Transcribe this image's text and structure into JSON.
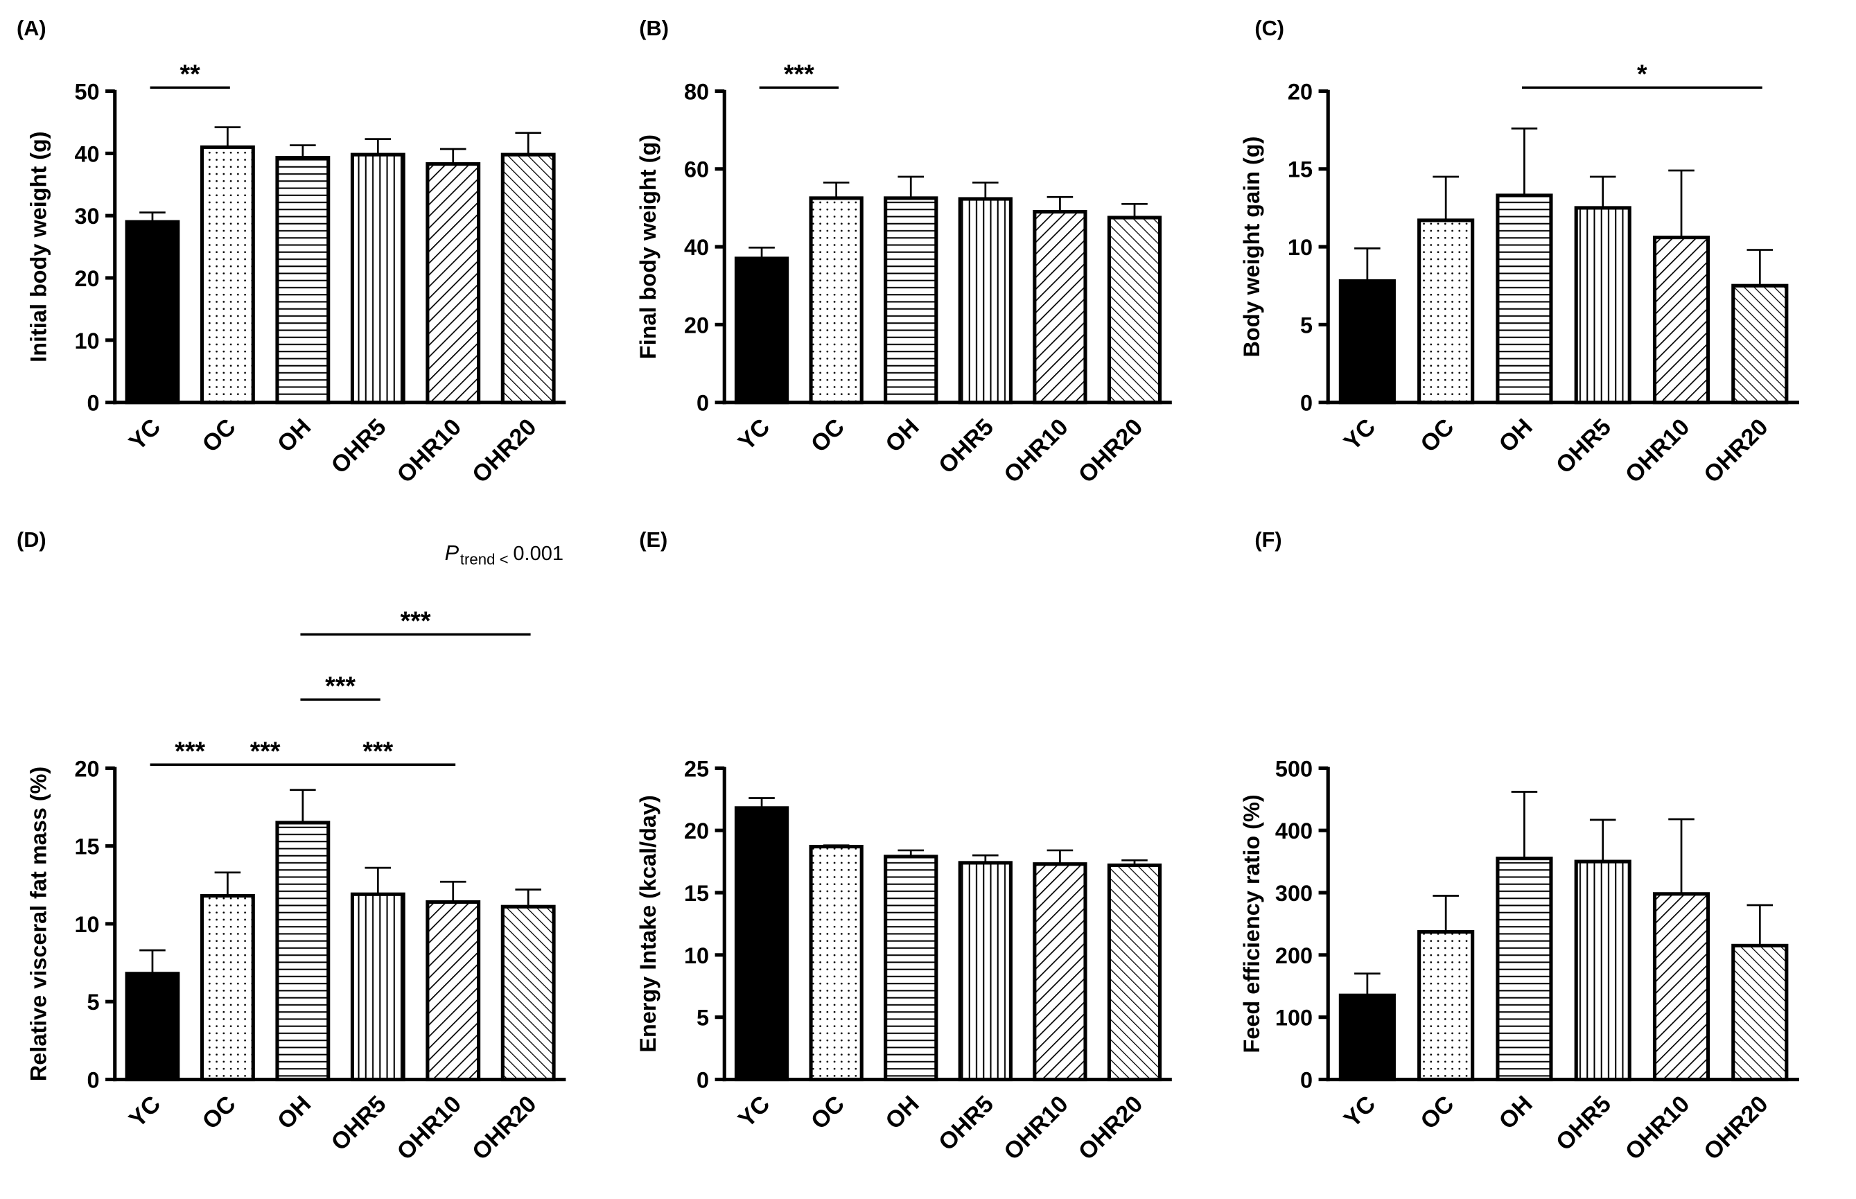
{
  "chart_data": [
    {
      "type": "bar",
      "panel": "(A)",
      "ylabel": "Initial body weight (g)",
      "categories": [
        "YC",
        "OC",
        "OH",
        "OHR5",
        "OHR10",
        "OHR20"
      ],
      "values": [
        29,
        41,
        39.3,
        39.8,
        38.3,
        39.8
      ],
      "errors": [
        1.5,
        3.2,
        2,
        2.5,
        2.4,
        3.5
      ],
      "ylim": [
        0,
        50
      ],
      "yticks": [
        0,
        10,
        20,
        30,
        40,
        50
      ],
      "significance": [
        {
          "label": "**",
          "from": "YC",
          "to": "OC"
        }
      ]
    },
    {
      "type": "bar",
      "panel": "(B)",
      "ylabel": "Final body weight (g)",
      "categories": [
        "YC",
        "OC",
        "OH",
        "OHR5",
        "OHR10",
        "OHR20"
      ],
      "values": [
        37,
        52.5,
        52.5,
        52.3,
        49,
        47.5
      ],
      "errors": [
        2.8,
        4,
        5.5,
        4.2,
        3.8,
        3.5
      ],
      "ylim": [
        0,
        80
      ],
      "yticks": [
        0,
        20,
        40,
        60,
        80
      ],
      "significance": [
        {
          "label": "***",
          "from": "YC",
          "to": "OC"
        }
      ]
    },
    {
      "type": "bar",
      "panel": "(C)",
      "ylabel": "Body weight gain (g)",
      "categories": [
        "YC",
        "OC",
        "OH",
        "OHR5",
        "OHR10",
        "OHR20"
      ],
      "values": [
        7.8,
        11.7,
        13.3,
        12.5,
        10.6,
        7.5
      ],
      "errors": [
        2.1,
        2.8,
        4.3,
        2,
        4.3,
        2.3
      ],
      "ylim": [
        0,
        20
      ],
      "yticks": [
        0,
        5,
        10,
        15,
        20
      ],
      "significance": [
        {
          "label": "*",
          "from": "OH",
          "to": "OHR20"
        }
      ]
    },
    {
      "type": "bar",
      "panel": "(D)",
      "ylabel": "Relative visceral fat mass (%)",
      "categories": [
        "YC",
        "OC",
        "OH",
        "OHR5",
        "OHR10",
        "OHR20"
      ],
      "values": [
        6.8,
        11.8,
        16.5,
        11.9,
        11.4,
        11.1
      ],
      "errors": [
        1.5,
        1.5,
        2.1,
        1.7,
        1.3,
        1.1
      ],
      "ylim": [
        0,
        20
      ],
      "yticks": [
        0,
        5,
        10,
        15,
        20
      ],
      "trend": {
        "symbol": "P",
        "subscript": "trend <",
        "value": "0.001"
      },
      "significance": [
        {
          "label": "***",
          "from": "YC",
          "to": "OC"
        },
        {
          "label": "***",
          "from": "OC",
          "to": "OH"
        },
        {
          "label": "***",
          "from": "OH",
          "to": "OHR10"
        },
        {
          "label": "***",
          "from": "OH",
          "to": "OHR5"
        },
        {
          "label": "***",
          "from": "OH",
          "to": "OHR20"
        }
      ]
    },
    {
      "type": "bar",
      "panel": "(E)",
      "ylabel": "Energy Intake (kcal/day)",
      "categories": [
        "YC",
        "OC",
        "OH",
        "OHR5",
        "OHR10",
        "OHR20"
      ],
      "values": [
        21.8,
        18.7,
        17.9,
        17.4,
        17.3,
        17.2
      ],
      "errors": [
        0.8,
        0.1,
        0.5,
        0.6,
        1.1,
        0.4
      ],
      "ylim": [
        0,
        25
      ],
      "yticks": [
        0,
        5,
        10,
        15,
        20,
        25
      ],
      "significance": []
    },
    {
      "type": "bar",
      "panel": "(F)",
      "ylabel": "Feed efficiency ratio (%)",
      "categories": [
        "YC",
        "OC",
        "OH",
        "OHR5",
        "OHR10",
        "OHR20"
      ],
      "values": [
        135,
        237,
        355,
        350,
        298,
        215
      ],
      "errors": [
        35,
        58,
        107,
        67,
        120,
        65
      ],
      "ylim": [
        0,
        500
      ],
      "yticks": [
        0,
        100,
        200,
        300,
        400,
        500
      ],
      "significance": []
    }
  ]
}
